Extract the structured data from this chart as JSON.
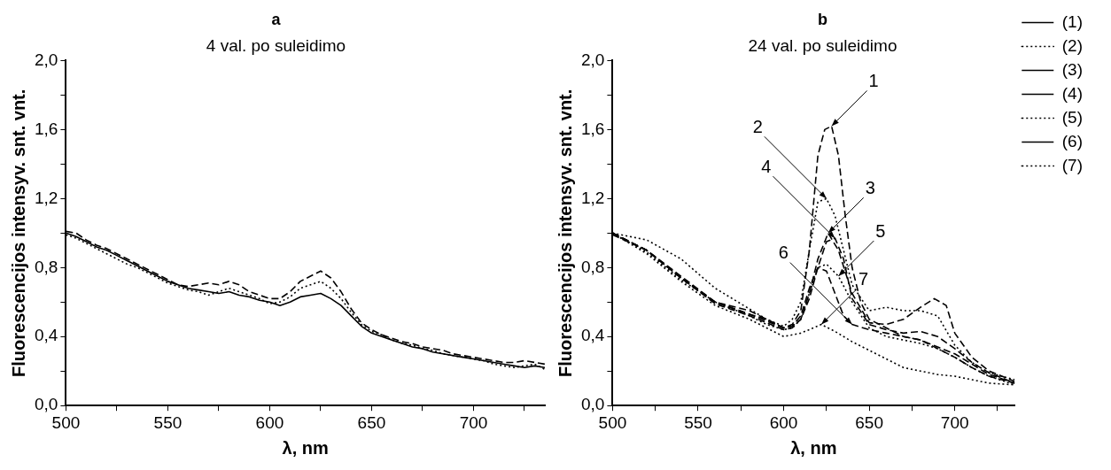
{
  "chart_data": [
    {
      "type": "line",
      "title": "a",
      "subtitle": "4 val. po suleidimo",
      "xlabel": "λ, nm",
      "ylabel": "Fluorescencijos intensyv. snt. vnt.",
      "xlim": [
        500,
        735
      ],
      "ylim": [
        0,
        2
      ],
      "xticks": [
        500,
        {
          "value": 525,
          "label": null
        },
        550,
        {
          "value": 575,
          "label": null
        },
        600,
        {
          "value": 625,
          "label": null
        },
        650,
        {
          "value": 675,
          "label": null
        },
        700,
        {
          "value": 725,
          "label": null
        }
      ],
      "yticks": [
        {
          "value": 0,
          "label": "0,0"
        },
        {
          "value": 0.2,
          "label": null
        },
        {
          "value": 0.4,
          "label": "0,4"
        },
        {
          "value": 0.6,
          "label": null
        },
        {
          "value": 0.8,
          "label": "0,8"
        },
        {
          "value": 1,
          "label": null
        },
        {
          "value": 1.2,
          "label": "1,2"
        },
        {
          "value": 1.4,
          "label": null
        },
        {
          "value": 1.6,
          "label": "1,6"
        },
        {
          "value": 1.8,
          "label": null
        },
        {
          "value": 2,
          "label": "2,0"
        }
      ],
      "grid": false,
      "legend": false,
      "series": [
        {
          "color": "#000000",
          "line_style": "solid",
          "x": [
            500,
            505,
            510,
            515,
            520,
            525,
            530,
            535,
            540,
            545,
            550,
            555,
            560,
            565,
            570,
            575,
            580,
            585,
            590,
            595,
            600,
            605,
            610,
            615,
            620,
            625,
            630,
            635,
            640,
            645,
            650,
            655,
            660,
            665,
            670,
            675,
            680,
            685,
            690,
            695,
            700,
            705,
            710,
            715,
            720,
            725,
            730,
            735
          ],
          "values": [
            1.0,
            0.98,
            0.95,
            0.92,
            0.9,
            0.87,
            0.84,
            0.81,
            0.78,
            0.75,
            0.72,
            0.7,
            0.68,
            0.67,
            0.66,
            0.65,
            0.66,
            0.64,
            0.63,
            0.61,
            0.6,
            0.58,
            0.6,
            0.63,
            0.64,
            0.65,
            0.62,
            0.58,
            0.52,
            0.46,
            0.42,
            0.4,
            0.38,
            0.36,
            0.34,
            0.33,
            0.31,
            0.3,
            0.29,
            0.28,
            0.27,
            0.26,
            0.25,
            0.24,
            0.23,
            0.22,
            0.23,
            0.22
          ]
        },
        {
          "color": "#000000",
          "line_style": "dashed",
          "x": [
            500,
            505,
            510,
            515,
            520,
            525,
            530,
            535,
            540,
            545,
            550,
            555,
            560,
            565,
            570,
            575,
            580,
            585,
            590,
            595,
            600,
            605,
            610,
            615,
            620,
            625,
            630,
            635,
            640,
            645,
            650,
            655,
            660,
            665,
            670,
            675,
            680,
            685,
            690,
            695,
            700,
            705,
            710,
            715,
            720,
            725,
            730,
            735
          ],
          "values": [
            1.01,
            1.0,
            0.96,
            0.93,
            0.91,
            0.88,
            0.85,
            0.82,
            0.79,
            0.76,
            0.73,
            0.7,
            0.69,
            0.7,
            0.71,
            0.7,
            0.72,
            0.7,
            0.66,
            0.64,
            0.62,
            0.62,
            0.66,
            0.72,
            0.75,
            0.78,
            0.74,
            0.66,
            0.56,
            0.48,
            0.44,
            0.41,
            0.39,
            0.37,
            0.36,
            0.34,
            0.33,
            0.32,
            0.3,
            0.29,
            0.28,
            0.27,
            0.26,
            0.25,
            0.25,
            0.26,
            0.25,
            0.24
          ]
        },
        {
          "color": "#000000",
          "line_style": "dotted",
          "x": [
            500,
            505,
            510,
            515,
            520,
            525,
            530,
            535,
            540,
            545,
            550,
            555,
            560,
            565,
            570,
            575,
            580,
            585,
            590,
            595,
            600,
            605,
            610,
            615,
            620,
            625,
            630,
            635,
            640,
            645,
            650,
            655,
            660,
            665,
            670,
            675,
            680,
            685,
            690,
            695,
            700,
            705,
            710,
            715,
            720,
            725,
            730,
            735
          ],
          "values": [
            0.99,
            0.97,
            0.94,
            0.91,
            0.88,
            0.85,
            0.82,
            0.8,
            0.77,
            0.74,
            0.71,
            0.69,
            0.67,
            0.66,
            0.64,
            0.66,
            0.68,
            0.66,
            0.64,
            0.62,
            0.59,
            0.6,
            0.63,
            0.68,
            0.7,
            0.72,
            0.68,
            0.62,
            0.54,
            0.47,
            0.43,
            0.41,
            0.38,
            0.36,
            0.35,
            0.33,
            0.32,
            0.3,
            0.29,
            0.28,
            0.27,
            0.26,
            0.24,
            0.23,
            0.22,
            0.23,
            0.24,
            0.21
          ]
        }
      ]
    },
    {
      "type": "line",
      "title": "b",
      "subtitle": "24 val. po suleidimo",
      "xlabel": "λ, nm",
      "ylabel": "Fluorescencijos intensyv. snt. vnt.",
      "xlim": [
        500,
        735
      ],
      "ylim": [
        0,
        2
      ],
      "xticks": [
        500,
        {
          "value": 525,
          "label": null
        },
        550,
        {
          "value": 575,
          "label": null
        },
        600,
        {
          "value": 625,
          "label": null
        },
        650,
        {
          "value": 675,
          "label": null
        },
        700,
        {
          "value": 725,
          "label": null
        }
      ],
      "yticks": [
        {
          "value": 0,
          "label": "0,0"
        },
        {
          "value": 0.2,
          "label": null
        },
        {
          "value": 0.4,
          "label": "0,4"
        },
        {
          "value": 0.6,
          "label": null
        },
        {
          "value": 0.8,
          "label": "0,8"
        },
        {
          "value": 1,
          "label": null
        },
        {
          "value": 1.2,
          "label": "1,2"
        },
        {
          "value": 1.4,
          "label": null
        },
        {
          "value": 1.6,
          "label": "1,6"
        },
        {
          "value": 1.8,
          "label": null
        },
        {
          "value": 2,
          "label": "2,0"
        }
      ],
      "grid": false,
      "legend": "top right",
      "annotations": [
        {
          "text": "1",
          "x": 628,
          "y": 1.62
        },
        {
          "text": "2",
          "x": 625,
          "y": 1.2
        },
        {
          "text": "3",
          "x": 626,
          "y": 1.0
        },
        {
          "text": "4",
          "x": 630,
          "y": 0.97
        },
        {
          "text": "5",
          "x": 632,
          "y": 0.75
        },
        {
          "text": "6",
          "x": 640,
          "y": 0.47
        },
        {
          "text": "7",
          "x": 622,
          "y": 0.47
        }
      ],
      "series": [
        {
          "name": "(1)",
          "color": "#000000",
          "line_style": "dashed",
          "x": [
            500,
            520,
            540,
            560,
            580,
            590,
            600,
            605,
            610,
            615,
            620,
            624,
            628,
            632,
            636,
            640,
            645,
            650,
            660,
            670,
            680,
            690,
            700,
            710,
            720,
            735
          ],
          "values": [
            1.0,
            0.9,
            0.75,
            0.6,
            0.53,
            0.5,
            0.45,
            0.47,
            0.55,
            0.9,
            1.45,
            1.6,
            1.62,
            1.45,
            1.1,
            0.8,
            0.6,
            0.5,
            0.45,
            0.4,
            0.38,
            0.33,
            0.28,
            0.22,
            0.17,
            0.13
          ]
        },
        {
          "name": "(2)",
          "color": "#000000",
          "line_style": "dotted",
          "x": [
            500,
            520,
            540,
            560,
            580,
            590,
            600,
            605,
            610,
            615,
            620,
            625,
            630,
            635,
            640,
            650,
            660,
            670,
            680,
            690,
            700,
            710,
            720,
            735
          ],
          "values": [
            1.0,
            0.96,
            0.85,
            0.68,
            0.56,
            0.5,
            0.46,
            0.5,
            0.6,
            0.9,
            1.18,
            1.2,
            1.1,
            0.9,
            0.7,
            0.55,
            0.57,
            0.55,
            0.55,
            0.52,
            0.35,
            0.25,
            0.19,
            0.15
          ]
        },
        {
          "name": "(3)",
          "color": "#000000",
          "line_style": "dashed",
          "x": [
            500,
            520,
            540,
            560,
            580,
            590,
            600,
            605,
            610,
            615,
            620,
            626,
            632,
            640,
            650,
            660,
            670,
            680,
            688,
            695,
            700,
            710,
            720,
            735
          ],
          "values": [
            1.0,
            0.9,
            0.74,
            0.6,
            0.53,
            0.49,
            0.45,
            0.46,
            0.5,
            0.65,
            0.85,
            1.0,
            0.9,
            0.65,
            0.48,
            0.47,
            0.5,
            0.57,
            0.62,
            0.58,
            0.42,
            0.28,
            0.2,
            0.14
          ]
        },
        {
          "name": "(4)",
          "color": "#000000",
          "line_style": "dashed",
          "x": [
            500,
            520,
            540,
            560,
            580,
            590,
            600,
            605,
            610,
            615,
            620,
            625,
            630,
            635,
            640,
            650,
            660,
            670,
            680,
            690,
            700,
            710,
            720,
            735
          ],
          "values": [
            0.99,
            0.9,
            0.74,
            0.59,
            0.52,
            0.48,
            0.44,
            0.45,
            0.5,
            0.62,
            0.8,
            0.95,
            0.97,
            0.85,
            0.62,
            0.47,
            0.44,
            0.42,
            0.43,
            0.4,
            0.33,
            0.25,
            0.19,
            0.13
          ]
        },
        {
          "name": "(5)",
          "color": "#000000",
          "line_style": "dotted",
          "x": [
            500,
            520,
            540,
            560,
            580,
            590,
            600,
            605,
            610,
            615,
            620,
            625,
            632,
            640,
            650,
            660,
            670,
            680,
            690,
            700,
            710,
            720,
            735
          ],
          "values": [
            1.0,
            0.89,
            0.73,
            0.6,
            0.52,
            0.47,
            0.44,
            0.45,
            0.5,
            0.65,
            0.8,
            0.82,
            0.75,
            0.6,
            0.45,
            0.4,
            0.38,
            0.36,
            0.33,
            0.28,
            0.22,
            0.17,
            0.12
          ]
        },
        {
          "name": "(6)",
          "color": "#000000",
          "line_style": "dashed",
          "x": [
            500,
            520,
            540,
            560,
            580,
            590,
            600,
            605,
            610,
            615,
            620,
            625,
            630,
            635,
            640,
            650,
            660,
            670,
            680,
            690,
            700,
            710,
            720,
            735
          ],
          "values": [
            1.0,
            0.9,
            0.74,
            0.6,
            0.55,
            0.5,
            0.45,
            0.46,
            0.52,
            0.68,
            0.8,
            0.78,
            0.65,
            0.52,
            0.47,
            0.44,
            0.42,
            0.4,
            0.38,
            0.34,
            0.3,
            0.24,
            0.18,
            0.13
          ]
        },
        {
          "name": "(7)",
          "color": "#000000",
          "line_style": "dotted",
          "x": [
            500,
            520,
            540,
            560,
            580,
            590,
            600,
            610,
            615,
            622,
            630,
            640,
            650,
            660,
            670,
            680,
            690,
            700,
            710,
            720,
            735
          ],
          "values": [
            1.0,
            0.88,
            0.72,
            0.58,
            0.5,
            0.45,
            0.4,
            0.42,
            0.44,
            0.47,
            0.43,
            0.37,
            0.32,
            0.27,
            0.22,
            0.2,
            0.18,
            0.17,
            0.15,
            0.13,
            0.12
          ]
        }
      ]
    }
  ]
}
